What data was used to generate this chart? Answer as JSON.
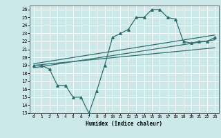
{
  "xlabel": "Humidex (Indice chaleur)",
  "bg_color": "#cce8e8",
  "line_color": "#2d6e6e",
  "ylim": [
    13,
    26.5
  ],
  "xlim": [
    -0.5,
    23.5
  ],
  "yticks": [
    13,
    14,
    15,
    16,
    17,
    18,
    19,
    20,
    21,
    22,
    23,
    24,
    25,
    26
  ],
  "xticks": [
    0,
    1,
    2,
    3,
    4,
    5,
    6,
    7,
    8,
    9,
    10,
    11,
    12,
    13,
    14,
    15,
    16,
    17,
    18,
    19,
    20,
    21,
    22,
    23
  ],
  "main_x": [
    0,
    1,
    2,
    3,
    4,
    5,
    6,
    7,
    8,
    9,
    10,
    11,
    12,
    13,
    14,
    15,
    16,
    17,
    18,
    19,
    20,
    21,
    22,
    23
  ],
  "main_y": [
    19.0,
    19.0,
    18.5,
    16.5,
    16.5,
    15.0,
    15.0,
    13.0,
    15.8,
    19.0,
    22.5,
    23.0,
    23.5,
    25.0,
    25.0,
    26.0,
    26.0,
    25.0,
    24.8,
    22.0,
    21.8,
    22.0,
    22.0,
    22.5
  ],
  "line1_x": [
    0,
    23
  ],
  "line1_y": [
    19.2,
    22.8
  ],
  "line2_x": [
    0,
    23
  ],
  "line2_y": [
    19.0,
    21.2
  ],
  "line3_x": [
    0,
    23
  ],
  "line3_y": [
    18.7,
    22.2
  ]
}
